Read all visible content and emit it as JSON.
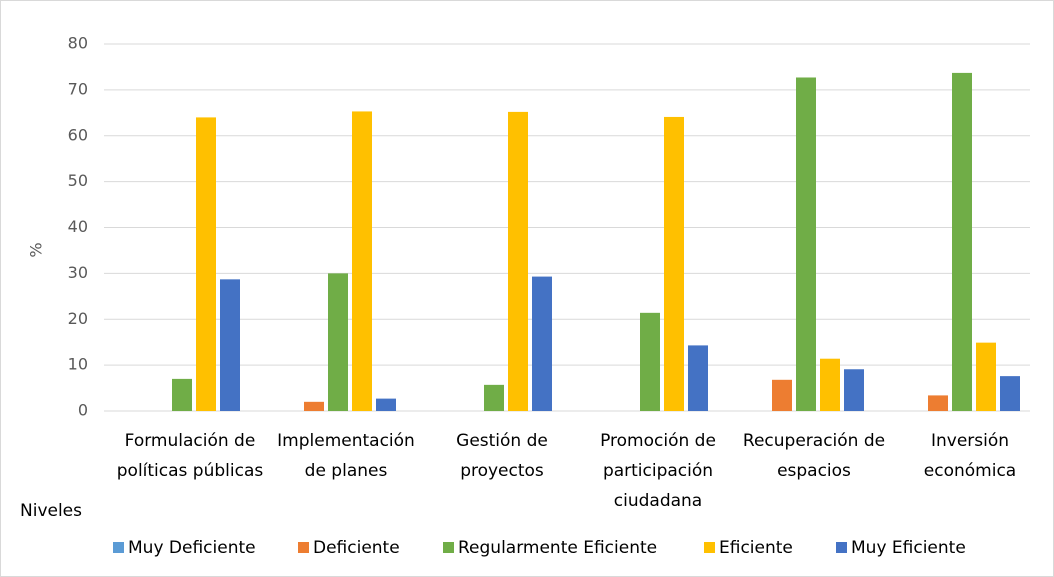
{
  "chart_data": {
    "type": "bar",
    "y_label": "%",
    "x_label": "Niveles",
    "categories": [
      [
        "Formulación de",
        "políticas públicas"
      ],
      [
        "Implementación",
        "de planes"
      ],
      [
        "Gestión de",
        "proyectos"
      ],
      [
        "Promoción de",
        "participación",
        "ciudadana"
      ],
      [
        "Recuperación de",
        "espacios"
      ],
      [
        "Inversión",
        "económica"
      ]
    ],
    "series": [
      {
        "name": "Muy Deficiente",
        "color": "#5b9bd5",
        "values": [
          0,
          0,
          0,
          0,
          0,
          0
        ]
      },
      {
        "name": "Deficiente",
        "color": "#ed7d31",
        "values": [
          0,
          2,
          0,
          0,
          6.8,
          3.4
        ]
      },
      {
        "name": "Regularmente Eficiente",
        "color": "#70ad47",
        "values": [
          7,
          30,
          5.7,
          21.4,
          72.7,
          73.7
        ]
      },
      {
        "name": "Eficiente",
        "color": "#ffc000",
        "values": [
          64,
          65.3,
          65.2,
          64.1,
          11.4,
          14.9
        ]
      },
      {
        "name": "Muy Eficiente",
        "color": "#4472c4",
        "values": [
          28.7,
          2.7,
          29.3,
          14.3,
          9.1,
          7.6
        ]
      }
    ],
    "ylim": [
      0,
      80
    ],
    "yticks": [
      0,
      10,
      20,
      30,
      40,
      50,
      60,
      70,
      80
    ],
    "grid": true,
    "legend": "bottom"
  }
}
